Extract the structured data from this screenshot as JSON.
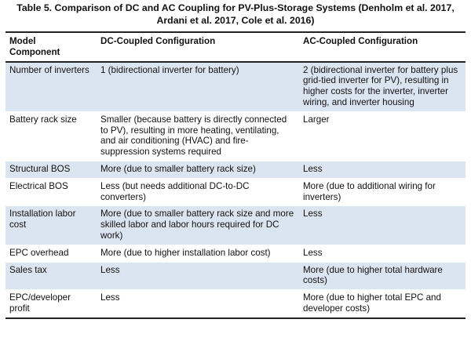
{
  "caption": {
    "line1": "Table 5. Comparison of DC and AC Coupling for PV-Plus-Storage Systems (Denholm et al. 2017,",
    "line2": "Ardani et al. 2017, Cole et al. 2016)"
  },
  "table": {
    "headers": {
      "component": "Model\nComponent",
      "dc": "DC-Coupled Configuration",
      "ac": "AC-Coupled Configuration"
    },
    "rows": [
      {
        "component": "Number of inverters",
        "dc": "1 (bidirectional inverter for battery)",
        "ac": "2 (bidirectional inverter for battery plus grid-tied inverter for PV), resulting in higher costs for the inverter, inverter wiring, and inverter housing"
      },
      {
        "component": "Battery rack size",
        "dc": "Smaller (because battery is directly connected to PV), resulting in more heating, ventilating, and air conditioning (HVAC) and fire-suppression systems required",
        "ac": "Larger"
      },
      {
        "component": "Structural BOS",
        "dc": "More (due to smaller battery rack size)",
        "ac": "Less"
      },
      {
        "component": "Electrical BOS",
        "dc": "Less (but needs additional DC-to-DC converters)",
        "ac": "More (due to additional wiring for inverters)"
      },
      {
        "component": "Installation labor cost",
        "dc": "More (due to smaller battery rack size and more skilled labor and labor hours required for DC work)",
        "ac": "Less"
      },
      {
        "component": "EPC overhead",
        "dc": "More (due to higher installation labor cost)",
        "ac": "Less"
      },
      {
        "component": "Sales tax",
        "dc": "Less",
        "ac": "More (due to higher total hardware costs)"
      },
      {
        "component": "EPC/developer profit",
        "dc": "Less",
        "ac": "More (due to higher total EPC and developer costs)"
      }
    ]
  }
}
